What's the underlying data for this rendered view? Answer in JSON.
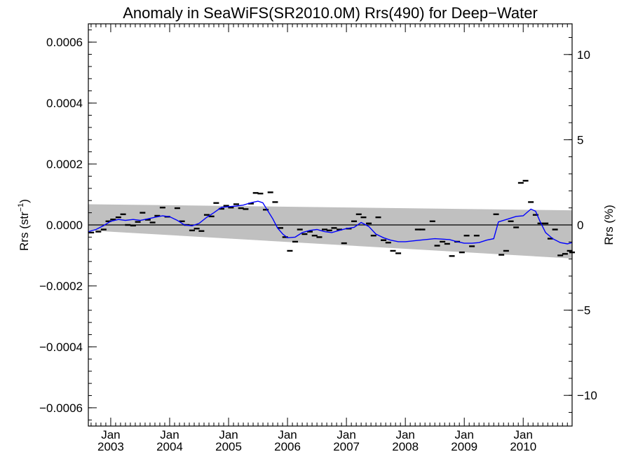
{
  "chart_data": {
    "type": "line",
    "title": "Anomaly in SeaWiFS(SR2010.0M) Rrs(490) for Deep−Water",
    "ylabel_left": "Rrs (str",
    "ylabel_left_sup": "−1",
    "ylabel_left_close": ")",
    "ylabel_right": "Rrs (%)",
    "xlim": [
      2002.62,
      2010.83
    ],
    "ylim": [
      -0.00066,
      0.00066
    ],
    "y2lim": [
      -11.8,
      11.8
    ],
    "grid": false,
    "x_ticks": [
      {
        "x": 2003.0,
        "top": "Jan",
        "bottom": "2003"
      },
      {
        "x": 2004.0,
        "top": "Jan",
        "bottom": "2004"
      },
      {
        "x": 2005.0,
        "top": "Jan",
        "bottom": "2005"
      },
      {
        "x": 2006.0,
        "top": "Jan",
        "bottom": "2006"
      },
      {
        "x": 2007.0,
        "top": "Jan",
        "bottom": "2007"
      },
      {
        "x": 2008.0,
        "top": "Jan",
        "bottom": "2008"
      },
      {
        "x": 2009.0,
        "top": "Jan",
        "bottom": "2009"
      },
      {
        "x": 2010.0,
        "top": "Jan",
        "bottom": "2010"
      }
    ],
    "y_ticks": [
      {
        "v": 0.0006,
        "label": "0.0006"
      },
      {
        "v": 0.0004,
        "label": "0.0004"
      },
      {
        "v": 0.0002,
        "label": "0.0002"
      },
      {
        "v": 0.0,
        "label": "0.0000"
      },
      {
        "v": -0.0002,
        "label": "−0.0002"
      },
      {
        "v": -0.0004,
        "label": "−0.0004"
      },
      {
        "v": -0.0006,
        "label": "−0.0006"
      }
    ],
    "y2_ticks": [
      {
        "v": 10,
        "label": "10"
      },
      {
        "v": 5,
        "label": "5"
      },
      {
        "v": 0,
        "label": "0"
      },
      {
        "v": -5,
        "label": "−5"
      },
      {
        "v": -10,
        "label": "−10"
      }
    ],
    "band": {
      "x": [
        2002.62,
        2010.83
      ],
      "upper": [
        6.8e-05,
        4.8e-05
      ],
      "lower": [
        -1.8e-05,
        -0.00011
      ],
      "color": "#c0c0c0"
    },
    "zero_line": 0.0,
    "series": [
      {
        "kind": "points",
        "color": "#000000",
        "x": [
          2002.67,
          2002.79,
          2002.88,
          2002.96,
          2003.04,
          2003.13,
          2003.21,
          2003.29,
          2003.38,
          2003.46,
          2003.54,
          2003.63,
          2003.71,
          2003.79,
          2003.88,
          2003.96,
          2004.13,
          2004.21,
          2004.29,
          2004.38,
          2004.46,
          2004.54,
          2004.63,
          2004.71,
          2004.79,
          2004.88,
          2004.96,
          2005.04,
          2005.13,
          2005.21,
          2005.29,
          2005.38,
          2005.46,
          2005.54,
          2005.63,
          2005.71,
          2005.79,
          2005.88,
          2005.96,
          2006.04,
          2006.13,
          2006.21,
          2006.29,
          2006.38,
          2006.46,
          2006.54,
          2006.63,
          2006.71,
          2006.79,
          2006.88,
          2006.96,
          2007.04,
          2007.13,
          2007.21,
          2007.29,
          2007.38,
          2007.46,
          2007.54,
          2007.63,
          2007.71,
          2007.79,
          2007.88,
          2008.21,
          2008.29,
          2008.46,
          2008.54,
          2008.63,
          2008.71,
          2008.79,
          2008.88,
          2008.96,
          2009.04,
          2009.13,
          2009.21,
          2009.54,
          2009.63,
          2009.71,
          2009.79,
          2009.88,
          2009.96,
          2010.04,
          2010.13,
          2010.21,
          2010.29,
          2010.38,
          2010.46,
          2010.54,
          2010.63,
          2010.71,
          2010.79,
          2010.83
        ],
        "y": [
          -2.5e-05,
          -2.2e-05,
          -1.5e-05,
          1.2e-05,
          1.8e-05,
          2.5e-05,
          3.5e-05,
          0.0,
          -2e-06,
          1e-05,
          4e-05,
          1.7e-05,
          8e-06,
          3e-05,
          5.7e-05,
          2.7e-05,
          5.5e-05,
          1.2e-05,
          0.0,
          -1.8e-05,
          -1.2e-05,
          -2e-05,
          3.3e-05,
          2.8e-05,
          7.2e-05,
          5.3e-05,
          6.3e-05,
          5.7e-05,
          6.8e-05,
          5.5e-05,
          5.2e-05,
          7e-05,
          0.000105,
          0.000103,
          5e-05,
          0.000107,
          7.5e-05,
          -1e-05,
          -4e-05,
          -8.5e-05,
          -5.5e-05,
          -1.5e-05,
          -3e-05,
          -2.2e-05,
          -3.5e-05,
          -4e-05,
          -1.5e-05,
          -1.8e-05,
          -1e-05,
          -1.5e-05,
          -6e-05,
          -1.2e-05,
          1.2e-05,
          3.5e-05,
          2.5e-05,
          5e-06,
          -3.5e-05,
          2.5e-05,
          -5e-05,
          -5.8e-05,
          -8.5e-05,
          -9.3e-05,
          -1.5e-05,
          -1.5e-05,
          1.2e-05,
          -6.8e-05,
          -5.5e-05,
          -6.2e-05,
          -0.000102,
          -5.5e-05,
          -9e-05,
          -3.5e-05,
          -7e-05,
          -3.5e-05,
          3.5e-05,
          -9.8e-05,
          -8.5e-05,
          1.2e-05,
          -8e-06,
          0.000138,
          0.000145,
          7.5e-05,
          3.3e-05,
          5e-06,
          5e-06,
          -4.5e-05,
          -1.5e-05,
          -0.0001,
          -9.5e-05,
          -8.5e-05,
          -9e-05
        ]
      },
      {
        "kind": "line",
        "color": "#0000ff",
        "x": [
          2002.62,
          2002.75,
          2002.88,
          2003.0,
          2003.13,
          2003.25,
          2003.38,
          2003.5,
          2003.63,
          2003.75,
          2003.88,
          2004.0,
          2004.13,
          2004.25,
          2004.38,
          2004.5,
          2004.63,
          2004.75,
          2004.88,
          2005.0,
          2005.13,
          2005.25,
          2005.38,
          2005.5,
          2005.58,
          2005.67,
          2005.75,
          2005.83,
          2005.92,
          2006.0,
          2006.13,
          2006.25,
          2006.38,
          2006.5,
          2006.63,
          2006.75,
          2006.88,
          2007.0,
          2007.13,
          2007.25,
          2007.38,
          2007.5,
          2007.63,
          2007.75,
          2007.88,
          2008.0,
          2008.25,
          2008.5,
          2008.75,
          2008.88,
          2009.0,
          2009.13,
          2009.25,
          2009.38,
          2009.5,
          2009.58,
          2009.75,
          2009.88,
          2010.0,
          2010.13,
          2010.21,
          2010.29,
          2010.38,
          2010.5,
          2010.63,
          2010.75,
          2010.83
        ],
        "y": [
          -2.2e-05,
          -1.5e-05,
          -2e-06,
          1.2e-05,
          1.8e-05,
          1.5e-05,
          1.8e-05,
          1.5e-05,
          2e-05,
          2.5e-05,
          3e-05,
          2.7e-05,
          1.5e-05,
          0.0,
          -3e-06,
          5e-06,
          2.5e-05,
          4e-05,
          5.8e-05,
          6e-05,
          6.2e-05,
          6.5e-05,
          7.3e-05,
          7.8e-05,
          7.3e-05,
          4.5e-05,
          2e-05,
          -1e-05,
          -3e-05,
          -4.2e-05,
          -4e-05,
          -2.5e-05,
          -1.8e-05,
          -1.5e-05,
          -2.2e-05,
          -2.5e-05,
          -1.8e-05,
          -1.2e-05,
          -8e-06,
          8e-06,
          -5e-06,
          -3e-05,
          -4.2e-05,
          -5e-05,
          -5.5e-05,
          -5.5e-05,
          -5e-05,
          -4.5e-05,
          -4.8e-05,
          -5.5e-05,
          -6e-05,
          -6e-05,
          -5.8e-05,
          -5e-05,
          -4.5e-05,
          1e-05,
          2e-05,
          2.8e-05,
          3e-05,
          5.2e-05,
          4.5e-05,
          1e-05,
          -2.5e-05,
          -4.5e-05,
          -5.8e-05,
          -6.2e-05,
          -5.8e-05
        ]
      }
    ]
  }
}
